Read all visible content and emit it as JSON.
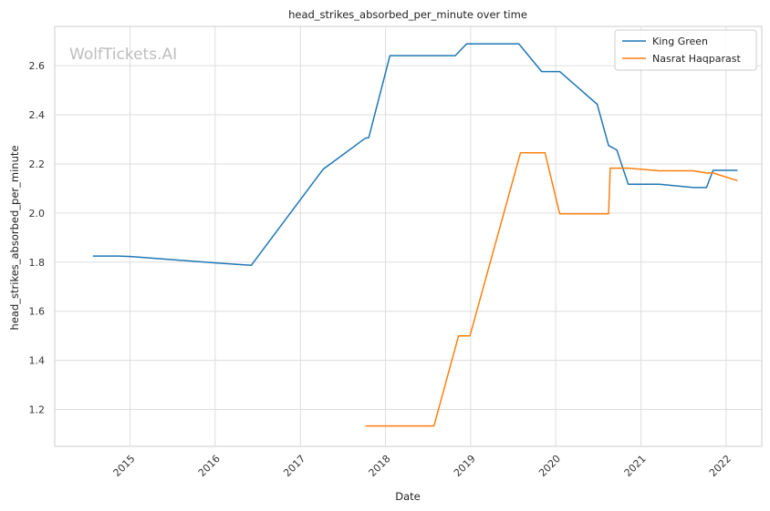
{
  "chart_data": {
    "type": "line",
    "title": "head_strikes_absorbed_per_minute over time",
    "xlabel": "Date",
    "ylabel": "head_strikes_absorbed_per_minute",
    "watermark": "WolfTickets.AI",
    "x_ticks": [
      "2015",
      "2016",
      "2017",
      "2018",
      "2019",
      "2020",
      "2021",
      "2022"
    ],
    "y_ticks": [
      "1.2",
      "1.4",
      "1.6",
      "1.8",
      "2.0",
      "2.2",
      "2.4",
      "2.6"
    ],
    "xlim": [
      "2014-02-12",
      "2022-06-03"
    ],
    "ylim": [
      1.05,
      2.76
    ],
    "grid": true,
    "legend_position": "top-right",
    "series": [
      {
        "name": "King Green",
        "color": "#1f77b4",
        "points": [
          [
            "2014-07-26",
            1.825
          ],
          [
            "2014-11-15",
            1.825
          ],
          [
            "2015-01-03",
            1.823
          ],
          [
            "2016-01-02",
            1.797
          ],
          [
            "2016-06-04",
            1.787
          ],
          [
            "2017-04-08",
            2.178
          ],
          [
            "2017-10-06",
            2.305
          ],
          [
            "2017-10-21",
            2.307
          ],
          [
            "2018-01-20",
            2.641
          ],
          [
            "2018-10-27",
            2.641
          ],
          [
            "2018-12-15",
            2.689
          ],
          [
            "2019-07-27",
            2.689
          ],
          [
            "2019-11-02",
            2.576
          ],
          [
            "2020-01-18",
            2.576
          ],
          [
            "2020-06-27",
            2.443
          ],
          [
            "2020-08-15",
            2.275
          ],
          [
            "2020-09-19",
            2.257
          ],
          [
            "2020-11-07",
            2.117
          ],
          [
            "2021-03-20",
            2.117
          ],
          [
            "2021-08-14",
            2.104
          ],
          [
            "2021-10-09",
            2.104
          ],
          [
            "2021-11-06",
            2.174
          ],
          [
            "2022-02-19",
            2.174
          ]
        ]
      },
      {
        "name": "Nasrat Haqparast",
        "color": "#ff7f0e",
        "points": [
          [
            "2017-10-07",
            1.133
          ],
          [
            "2018-07-28",
            1.133
          ],
          [
            "2018-11-10",
            1.5
          ],
          [
            "2018-12-29",
            1.5
          ],
          [
            "2019-08-03",
            2.245
          ],
          [
            "2019-11-16",
            2.245
          ],
          [
            "2020-01-18",
            1.997
          ],
          [
            "2020-08-15",
            1.997
          ],
          [
            "2020-08-22",
            2.183
          ],
          [
            "2020-11-07",
            2.183
          ],
          [
            "2021-03-20",
            2.172
          ],
          [
            "2021-08-14",
            2.172
          ],
          [
            "2021-10-09",
            2.163
          ],
          [
            "2021-11-06",
            2.163
          ],
          [
            "2022-02-19",
            2.132
          ]
        ]
      }
    ]
  }
}
